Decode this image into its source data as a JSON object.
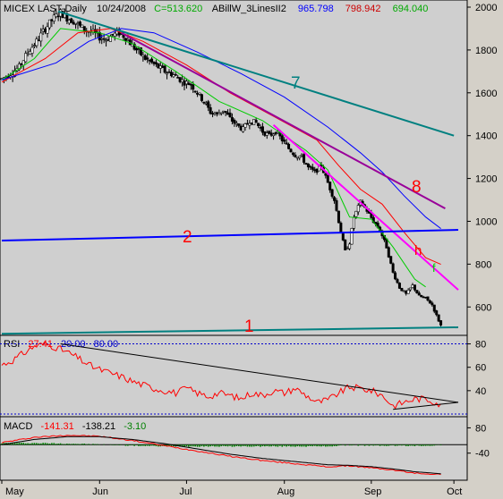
{
  "header": {
    "symbol": "MICEX LAST-Daily",
    "date": "10/24/2008",
    "close": "C=513.620",
    "indicator": "ABillW_3LinesII2",
    "ind1": "965.798",
    "ind2": "798.942",
    "ind3": "694.040"
  },
  "rsi_header": {
    "name": "RSI",
    "value": "27.41",
    "low": "20.00",
    "high": "80.00"
  },
  "macd_header": {
    "name": "MACD",
    "v1": "-141.31",
    "v2": "-138.21",
    "v3": "-3.10"
  },
  "annotations": [
    "7",
    "8",
    "2",
    "1",
    "h",
    "f"
  ],
  "colors": {
    "panel_bg": "#cfcfcf",
    "axis_bg": "#d4d0c8",
    "up_candle": "#ffffff",
    "down_candle": "#000000",
    "blue_line": "#0000ff",
    "red_line": "#ff0000",
    "green_line": "#00cc00",
    "teal_line": "#008080",
    "purple_line": "#990099",
    "magenta_line": "#ff00ff",
    "rsi_line": "#ff0000",
    "macd_line": "#ff0000",
    "signal_line": "#000000",
    "hist_color": "#008000"
  },
  "chart_data": [
    {
      "type": "candlestick",
      "title": "MICEX LAST-Daily",
      "x_labels": [
        "May",
        "Jun",
        "Jul",
        "Aug",
        "Sep",
        "Oct"
      ],
      "y_ticks": [
        600,
        800,
        1000,
        1200,
        1400,
        1600,
        1800,
        2000
      ],
      "ylim": [
        480,
        2000
      ],
      "close_path": [
        [
          0,
          1665
        ],
        [
          4,
          1690
        ],
        [
          8,
          1720
        ],
        [
          12,
          1790
        ],
        [
          16,
          1840
        ],
        [
          20,
          1900
        ],
        [
          24,
          1950
        ],
        [
          27,
          1975
        ],
        [
          30,
          1950
        ],
        [
          33,
          1935
        ],
        [
          36,
          1910
        ],
        [
          39,
          1890
        ],
        [
          42,
          1880
        ],
        [
          45,
          1860
        ],
        [
          48,
          1850
        ],
        [
          51,
          1870
        ],
        [
          54,
          1880
        ],
        [
          57,
          1860
        ],
        [
          60,
          1820
        ],
        [
          63,
          1790
        ],
        [
          66,
          1760
        ],
        [
          69,
          1740
        ],
        [
          72,
          1720
        ],
        [
          75,
          1700
        ],
        [
          78,
          1690
        ],
        [
          81,
          1670
        ],
        [
          84,
          1650
        ],
        [
          87,
          1640
        ],
        [
          90,
          1600
        ],
        [
          93,
          1560
        ],
        [
          96,
          1510
        ],
        [
          99,
          1500
        ],
        [
          102,
          1520
        ],
        [
          105,
          1480
        ],
        [
          108,
          1450
        ],
        [
          111,
          1430
        ],
        [
          114,
          1470
        ],
        [
          117,
          1460
        ],
        [
          120,
          1420
        ],
        [
          123,
          1400
        ],
        [
          126,
          1420
        ],
        [
          129,
          1380
        ],
        [
          132,
          1340
        ],
        [
          135,
          1310
        ],
        [
          138,
          1300
        ],
        [
          141,
          1250
        ],
        [
          144,
          1230
        ],
        [
          147,
          1260
        ],
        [
          150,
          1180
        ],
        [
          153,
          1100
        ],
        [
          156,
          950
        ],
        [
          158,
          860
        ],
        [
          160,
          900
        ],
        [
          162,
          1020
        ],
        [
          165,
          1090
        ],
        [
          168,
          1050
        ],
        [
          171,
          1000
        ],
        [
          174,
          960
        ],
        [
          177,
          880
        ],
        [
          180,
          760
        ],
        [
          183,
          690
        ],
        [
          186,
          660
        ],
        [
          189,
          700
        ],
        [
          192,
          650
        ],
        [
          195,
          640
        ],
        [
          198,
          610
        ],
        [
          200,
          560
        ],
        [
          202,
          514
        ]
      ],
      "moving_averages": [
        {
          "color": "green",
          "points": [
            [
              0,
              1660
            ],
            [
              15,
              1760
            ],
            [
              27,
              1900
            ],
            [
              45,
              1880
            ],
            [
              60,
              1830
            ],
            [
              80,
              1700
            ],
            [
              100,
              1560
            ],
            [
              120,
              1470
            ],
            [
              140,
              1330
            ],
            [
              150,
              1240
            ],
            [
              160,
              1020
            ],
            [
              170,
              1010
            ],
            [
              180,
              880
            ],
            [
              190,
              730
            ],
            [
              195,
              694
            ]
          ]
        },
        {
          "color": "red",
          "points": [
            [
              0,
              1650
            ],
            [
              20,
              1760
            ],
            [
              35,
              1880
            ],
            [
              50,
              1900
            ],
            [
              65,
              1840
            ],
            [
              85,
              1730
            ],
            [
              105,
              1600
            ],
            [
              125,
              1490
            ],
            [
              145,
              1380
            ],
            [
              155,
              1260
            ],
            [
              165,
              1150
            ],
            [
              175,
              1080
            ],
            [
              185,
              950
            ],
            [
              195,
              830
            ],
            [
              202,
              799
            ]
          ]
        },
        {
          "color": "blue",
          "points": [
            [
              0,
              1660
            ],
            [
              25,
              1740
            ],
            [
              40,
              1840
            ],
            [
              55,
              1900
            ],
            [
              70,
              1880
            ],
            [
              90,
              1790
            ],
            [
              110,
              1690
            ],
            [
              130,
              1580
            ],
            [
              150,
              1440
            ],
            [
              165,
              1320
            ],
            [
              175,
              1230
            ],
            [
              185,
              1120
            ],
            [
              195,
              1020
            ],
            [
              202,
              966
            ]
          ]
        }
      ],
      "trend_lines": [
        {
          "label": "7",
          "color": "teal",
          "from": [
            26,
            1980
          ],
          "to": [
            208,
            1400
          ]
        },
        {
          "label": "8",
          "color": "purple",
          "from": [
            55,
            1880
          ],
          "to": [
            204,
            1060
          ]
        },
        {
          "label": "h",
          "color": "magenta",
          "from": [
            125,
            1450
          ],
          "to": [
            210,
            680
          ]
        },
        {
          "label": "2",
          "color": "blue",
          "from": [
            0,
            910
          ],
          "to": [
            210,
            960
          ]
        },
        {
          "label": "1",
          "color": "teal",
          "from": [
            0,
            475
          ],
          "to": [
            210,
            505
          ]
        }
      ]
    },
    {
      "type": "line",
      "title": "RSI",
      "y_ticks": [
        40,
        60,
        80
      ],
      "ylim": [
        20,
        85
      ],
      "levels": [
        20,
        80
      ],
      "series": [
        {
          "name": "RSI",
          "points": [
            [
              0,
              62
            ],
            [
              5,
              66
            ],
            [
              10,
              72
            ],
            [
              15,
              78
            ],
            [
              20,
              80
            ],
            [
              25,
              77
            ],
            [
              30,
              73
            ],
            [
              35,
              68
            ],
            [
              40,
              62
            ],
            [
              45,
              58
            ],
            [
              50,
              55
            ],
            [
              55,
              52
            ],
            [
              60,
              48
            ],
            [
              65,
              45
            ],
            [
              70,
              42
            ],
            [
              75,
              40
            ],
            [
              80,
              38
            ],
            [
              85,
              42
            ],
            [
              90,
              38
            ],
            [
              95,
              35
            ],
            [
              100,
              38
            ],
            [
              105,
              36
            ],
            [
              110,
              33
            ],
            [
              115,
              38
            ],
            [
              120,
              36
            ],
            [
              125,
              40
            ],
            [
              130,
              38
            ],
            [
              135,
              42
            ],
            [
              140,
              36
            ],
            [
              145,
              30
            ],
            [
              150,
              32
            ],
            [
              155,
              38
            ],
            [
              160,
              43
            ],
            [
              165,
              42
            ],
            [
              170,
              40
            ],
            [
              175,
              36
            ],
            [
              180,
              27
            ],
            [
              185,
              30
            ],
            [
              190,
              33
            ],
            [
              195,
              33
            ],
            [
              200,
              30
            ],
            [
              202,
              27
            ]
          ]
        }
      ]
    },
    {
      "type": "line",
      "title": "MACD",
      "y_ticks": [
        80,
        -40
      ],
      "ylim": [
        -160,
        120
      ],
      "series": [
        {
          "name": "MACD",
          "points": [
            [
              0,
              10
            ],
            [
              15,
              35
            ],
            [
              30,
              45
            ],
            [
              45,
              40
            ],
            [
              60,
              20
            ],
            [
              75,
              -5
            ],
            [
              90,
              -30
            ],
            [
              105,
              -55
            ],
            [
              120,
              -75
            ],
            [
              135,
              -90
            ],
            [
              150,
              -105
            ],
            [
              160,
              -100
            ],
            [
              170,
              -110
            ],
            [
              180,
              -120
            ],
            [
              190,
              -135
            ],
            [
              202,
              -141
            ]
          ]
        },
        {
          "name": "Signal",
          "points": [
            [
              0,
              0
            ],
            [
              15,
              25
            ],
            [
              30,
              38
            ],
            [
              45,
              38
            ],
            [
              60,
              25
            ],
            [
              75,
              5
            ],
            [
              90,
              -20
            ],
            [
              105,
              -45
            ],
            [
              120,
              -65
            ],
            [
              135,
              -80
            ],
            [
              150,
              -95
            ],
            [
              160,
              -98
            ],
            [
              170,
              -104
            ],
            [
              180,
              -115
            ],
            [
              190,
              -128
            ],
            [
              202,
              -138
            ]
          ]
        }
      ]
    }
  ]
}
